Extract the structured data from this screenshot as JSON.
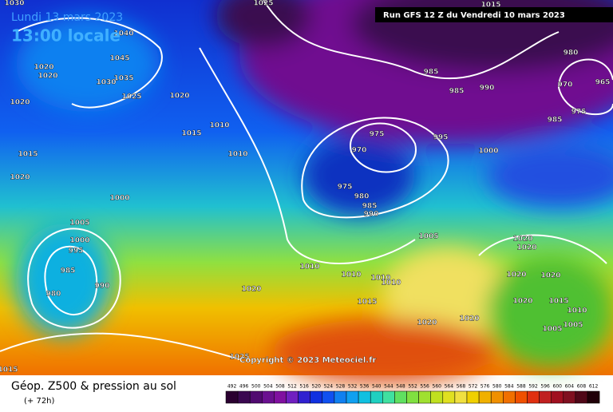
{
  "header": {
    "date": "Lundi 13 mars 2023",
    "time": "13:00 locale",
    "run": "Run GFS 12 Z du Vendredi 10 mars 2023"
  },
  "footer": {
    "title": "Géop. Z500 & pression au sol",
    "lead": "(+ 72h)",
    "copyright": "Copyright © 2023 Meteociel.fr"
  },
  "legend": {
    "values": [
      492,
      496,
      500,
      504,
      508,
      512,
      516,
      520,
      524,
      528,
      532,
      536,
      540,
      544,
      548,
      552,
      556,
      560,
      564,
      568,
      572,
      576,
      580,
      584,
      588,
      592,
      596,
      600,
      604,
      608,
      612
    ]
  },
  "isobar_labels": [
    1030,
    1040,
    1045,
    1035,
    1030,
    1025,
    1020,
    1020,
    1020,
    1020,
    1015,
    1010,
    1015,
    1020,
    1010,
    1000,
    1005,
    1000,
    995,
    985,
    980,
    990,
    985,
    985,
    990,
    980,
    970,
    965,
    975,
    985,
    975,
    970,
    995,
    1000,
    975,
    980,
    985,
    990,
    1005,
    1010,
    1010,
    1010,
    1010,
    1020,
    1015,
    1020,
    1020,
    1020,
    1020,
    1020,
    1020,
    1020,
    1015,
    1010,
    1005,
    1005,
    1015,
    1025,
    1025,
    1015
  ]
}
